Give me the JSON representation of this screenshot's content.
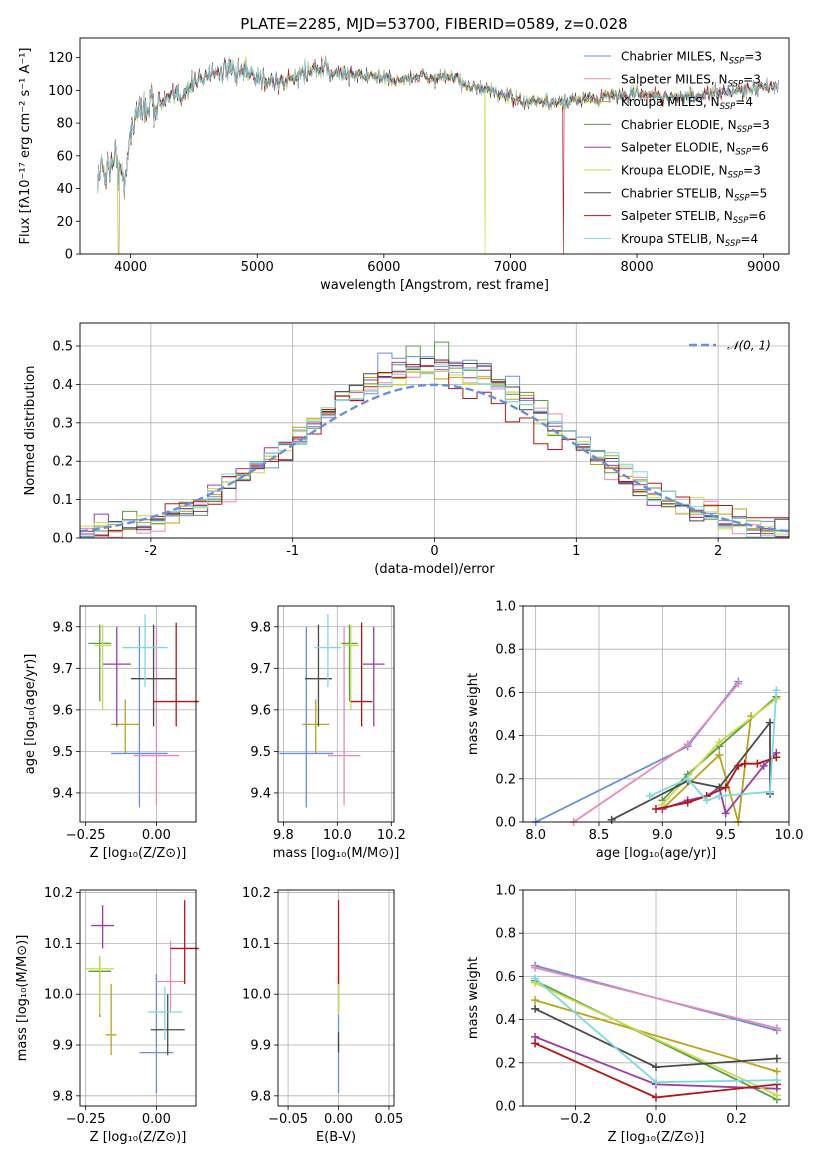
{
  "figure": {
    "title": "PLATE=2285, MJD=53700, FIBERID=0589, z=0.028"
  },
  "chart_data": [
    {
      "id": "spectrum",
      "type": "line",
      "xlabel": "wavelength [Angstrom, rest frame]",
      "ylabel": "Flux [fλ10⁻¹⁷ erg cm⁻² s⁻¹ A⁻¹]",
      "xlim": [
        3600,
        9200
      ],
      "ylim": [
        0,
        132
      ],
      "xticks": [
        4000,
        5000,
        6000,
        7000,
        8000,
        9000
      ],
      "yticks": [
        0,
        20,
        40,
        60,
        80,
        100,
        120
      ],
      "legend_position": "top-right",
      "grid": false,
      "data_range_x": [
        3740,
        9120
      ],
      "continuum": {
        "x": [
          3740,
          3800,
          3850,
          3900,
          3950,
          4000,
          4050,
          4100,
          4200,
          4300,
          4400,
          4500,
          4600,
          4700,
          4800,
          4900,
          5000,
          5100,
          5200,
          5300,
          5400,
          5500,
          5600,
          5700,
          5800,
          5900,
          6000,
          6100,
          6200,
          6300,
          6400,
          6500,
          6600,
          6700,
          6800,
          6900,
          7000,
          7100,
          7200,
          7300,
          7400,
          7500,
          7600,
          7700,
          7800,
          7900,
          8000,
          8200,
          8400,
          8600,
          8800,
          9000,
          9120
        ],
        "y": [
          48,
          52,
          56,
          58,
          40,
          78,
          86,
          90,
          92,
          94,
          98,
          104,
          110,
          112,
          111,
          110,
          108,
          106,
          104,
          108,
          112,
          112,
          111,
          110,
          110,
          108,
          108,
          106,
          107,
          109,
          107,
          108,
          106,
          102,
          100,
          98,
          96,
          92,
          94,
          92,
          92,
          94,
          96,
          95,
          98,
          96,
          98,
          96,
          96,
          98,
          100,
          102,
          102
        ]
      },
      "series": [
        {
          "name": "Chabrier MILES, N",
          "sub": "SSP",
          "value": "=3",
          "color": "#6a8fd8"
        },
        {
          "name": "Salpeter MILES, N",
          "sub": "SSP",
          "value": "=3",
          "color": "#e88ab8"
        },
        {
          "name": "Kroupa MILES, N",
          "sub": "SSP",
          "value": "=4",
          "color": "#b8a418"
        },
        {
          "name": "Chabrier ELODIE, N",
          "sub": "SSP",
          "value": "=3",
          "color": "#5a9b48"
        },
        {
          "name": "Salpeter ELODIE, N",
          "sub": "SSP",
          "value": "=6",
          "color": "#9b3aa8"
        },
        {
          "name": "Kroupa ELODIE, N",
          "sub": "SSP",
          "value": "=3",
          "color": "#c8dc48"
        },
        {
          "name": "Chabrier STELIB, N",
          "sub": "SSP",
          "value": "=5",
          "color": "#4a4a4a"
        },
        {
          "name": "Salpeter STELIB, N",
          "sub": "SSP",
          "value": "=6",
          "color": "#b01818"
        },
        {
          "name": "Kroupa STELIB, N",
          "sub": "SSP",
          "value": "=4",
          "color": "#7ed8e0"
        }
      ],
      "dips": [
        {
          "series": 2,
          "x": 3905,
          "y": 0
        },
        {
          "series": 5,
          "x": 6800,
          "y": 0
        },
        {
          "series": 7,
          "x": 7420,
          "y": 0
        }
      ]
    },
    {
      "id": "residuals",
      "type": "histogram",
      "xlabel": "(data-model)/error",
      "ylabel": "Normed distribution",
      "xlim": [
        -2.5,
        2.5
      ],
      "ylim": [
        0,
        0.56
      ],
      "xticks": [
        -2,
        -1,
        0,
        1,
        2
      ],
      "yticks": [
        0.0,
        0.1,
        0.2,
        0.3,
        0.4,
        0.5
      ],
      "grid": true,
      "bin_width": 0.1,
      "reference": {
        "name": "𝒩(0, 1)",
        "style": "dashed",
        "color": "#6a8fd8"
      }
    },
    {
      "id": "age-vs-z",
      "type": "errorbar",
      "xlabel": "Z [log₁₀(Z/Z⊙)]",
      "ylabel": "age  [log₁₀(age/yr)]",
      "xlim": [
        -0.27,
        0.14
      ],
      "ylim": [
        9.33,
        9.85
      ],
      "xticks": [
        -0.25,
        0.0
      ],
      "xtick_labels": [
        "−0.25",
        "0.00"
      ],
      "yticks": [
        9.4,
        9.5,
        9.6,
        9.7,
        9.8
      ],
      "grid": true,
      "points": [
        {
          "series": 0,
          "x": -0.06,
          "y": 9.495,
          "xerr": 0.1,
          "yerr": [
            0.13,
            0.305
          ]
        },
        {
          "series": 1,
          "x": 0.0,
          "y": 9.49,
          "xerr": 0.08,
          "yerr": [
            0.12,
            0.31
          ]
        },
        {
          "series": 2,
          "x": -0.11,
          "y": 9.565,
          "xerr": 0.05,
          "yerr": [
            0.07,
            0.06
          ]
        },
        {
          "series": 3,
          "x": -0.2,
          "y": 9.76,
          "xerr": 0.04,
          "yerr": [
            0.14,
            0.045
          ]
        },
        {
          "series": 4,
          "x": -0.14,
          "y": 9.71,
          "xerr": 0.05,
          "yerr": [
            0.15,
            0.09
          ]
        },
        {
          "series": 5,
          "x": -0.19,
          "y": 9.755,
          "xerr": 0.03,
          "yerr": [
            0.155,
            0.05
          ]
        },
        {
          "series": 6,
          "x": -0.01,
          "y": 9.675,
          "xerr": 0.08,
          "yerr": [
            0.115,
            0.13
          ]
        },
        {
          "series": 7,
          "x": 0.07,
          "y": 9.62,
          "xerr": 0.08,
          "yerr": [
            0.06,
            0.19
          ]
        },
        {
          "series": 8,
          "x": -0.04,
          "y": 9.75,
          "xerr": 0.08,
          "yerr": [
            0.095,
            0.08
          ]
        }
      ]
    },
    {
      "id": "age-vs-mass",
      "type": "errorbar",
      "xlabel": "mass [log₁₀(M/M⊙)]",
      "ylabel": "",
      "xlim": [
        9.78,
        10.21
      ],
      "ylim": [
        9.33,
        9.85
      ],
      "xticks": [
        9.8,
        10.0,
        10.2
      ],
      "xtick_labels": [
        "9.8",
        "10.0",
        "10.2"
      ],
      "yticks": [
        9.4,
        9.5,
        9.6,
        9.7,
        9.8
      ],
      "grid": true,
      "points": [
        {
          "series": 0,
          "x": 9.885,
          "y": 9.495,
          "xerr": 0.1,
          "yerr": [
            0.13,
            0.305
          ]
        },
        {
          "series": 1,
          "x": 10.025,
          "y": 9.49,
          "xerr": 0.06,
          "yerr": [
            0.12,
            0.31
          ]
        },
        {
          "series": 2,
          "x": 9.92,
          "y": 9.565,
          "xerr": 0.05,
          "yerr": [
            0.07,
            0.06
          ]
        },
        {
          "series": 3,
          "x": 10.045,
          "y": 9.76,
          "xerr": 0.03,
          "yerr": [
            0.14,
            0.045
          ]
        },
        {
          "series": 4,
          "x": 10.135,
          "y": 9.71,
          "xerr": 0.04,
          "yerr": [
            0.15,
            0.09
          ]
        },
        {
          "series": 5,
          "x": 10.05,
          "y": 9.755,
          "xerr": 0.03,
          "yerr": [
            0.155,
            0.05
          ]
        },
        {
          "series": 6,
          "x": 9.93,
          "y": 9.675,
          "xerr": 0.05,
          "yerr": [
            0.115,
            0.13
          ]
        },
        {
          "series": 7,
          "x": 10.09,
          "y": 9.62,
          "xerr": 0.04,
          "yerr": [
            0.06,
            0.19
          ]
        },
        {
          "series": 8,
          "x": 9.965,
          "y": 9.75,
          "xerr": 0.05,
          "yerr": [
            0.095,
            0.08
          ]
        }
      ]
    },
    {
      "id": "weight-vs-age",
      "type": "line",
      "xlabel": "age  [log₁₀(age/yr)]",
      "ylabel": "mass weight",
      "xlim": [
        7.9,
        10.0
      ],
      "ylim": [
        0,
        1.0
      ],
      "xticks": [
        8.0,
        8.5,
        9.0,
        9.5,
        10.0
      ],
      "xtick_labels": [
        "8.0",
        "8.5",
        "9.0",
        "9.5",
        "10.0"
      ],
      "yticks": [
        0.0,
        0.2,
        0.4,
        0.6,
        0.8,
        1.0
      ],
      "ytick_labels": [
        "0.0",
        "0.2",
        "0.4",
        "0.6",
        "0.8",
        "1.0"
      ],
      "grid": true,
      "lines": [
        {
          "series": 0,
          "x": [
            8.0,
            9.2,
            9.6
          ],
          "y": [
            0.0,
            0.35,
            0.65
          ]
        },
        {
          "series": 1,
          "x": [
            8.3,
            9.2,
            9.6
          ],
          "y": [
            0.0,
            0.36,
            0.64
          ]
        },
        {
          "series": 2,
          "x": [
            9.0,
            9.45,
            9.6,
            9.7
          ],
          "y": [
            0.06,
            0.31,
            0.0,
            0.49
          ]
        },
        {
          "series": 3,
          "x": [
            9.0,
            9.2,
            9.45,
            9.9
          ],
          "y": [
            0.1,
            0.22,
            0.35,
            0.58
          ]
        },
        {
          "series": 4,
          "x": [
            9.0,
            9.2,
            9.35,
            9.45,
            9.5,
            9.8,
            9.9
          ],
          "y": [
            0.06,
            0.1,
            0.12,
            0.16,
            0.04,
            0.26,
            0.32
          ]
        },
        {
          "series": 5,
          "x": [
            9.0,
            9.45,
            9.9
          ],
          "y": [
            0.08,
            0.37,
            0.57
          ]
        },
        {
          "series": 6,
          "x": [
            8.6,
            9.2,
            9.45,
            9.85,
            9.85
          ],
          "y": [
            0.01,
            0.19,
            0.16,
            0.46,
            0.13
          ]
        },
        {
          "series": 7,
          "x": [
            8.95,
            9.2,
            9.35,
            9.5,
            9.6,
            9.65,
            9.75,
            9.9
          ],
          "y": [
            0.06,
            0.09,
            0.12,
            0.16,
            0.26,
            0.27,
            0.27,
            0.3
          ]
        },
        {
          "series": 8,
          "x": [
            8.9,
            9.2,
            9.35,
            9.45,
            9.85,
            9.9
          ],
          "y": [
            0.12,
            0.2,
            0.1,
            0.12,
            0.14,
            0.61
          ]
        }
      ]
    },
    {
      "id": "mass-vs-z",
      "type": "errorbar",
      "xlabel": "Z [log₁₀(Z/Z⊙)]",
      "ylabel": "mass [log₁₀(M/M⊙)]",
      "xlim": [
        -0.27,
        0.14
      ],
      "ylim": [
        9.78,
        10.205
      ],
      "xticks": [
        -0.25,
        0.0
      ],
      "xtick_labels": [
        "−0.25",
        "0.00"
      ],
      "yticks": [
        9.8,
        9.9,
        10.0,
        10.1,
        10.2
      ],
      "ytick_labels": [
        "9.8",
        "9.9",
        "10.0",
        "10.1",
        "10.2"
      ],
      "grid": true,
      "points": [
        {
          "series": 0,
          "x": 0.0,
          "y": 9.885,
          "xerr": 0.06,
          "yerr": [
            0.08,
            0.155
          ]
        },
        {
          "series": 1,
          "x": 0.05,
          "y": 10.025,
          "xerr": 0.05,
          "yerr": [
            0.06,
            0.08
          ]
        },
        {
          "series": 2,
          "x": -0.16,
          "y": 9.92,
          "xerr": 0.02,
          "yerr": [
            0.04,
            0.1
          ]
        },
        {
          "series": 3,
          "x": -0.2,
          "y": 10.045,
          "xerr": 0.04,
          "yerr": [
            0.09,
            0.03
          ]
        },
        {
          "series": 4,
          "x": -0.19,
          "y": 10.135,
          "xerr": 0.04,
          "yerr": [
            0.045,
            0.04
          ]
        },
        {
          "series": 5,
          "x": -0.2,
          "y": 10.05,
          "xerr": 0.05,
          "yerr": [
            0.09,
            0.025
          ]
        },
        {
          "series": 6,
          "x": 0.04,
          "y": 9.93,
          "xerr": 0.06,
          "yerr": [
            0.05,
            0.07
          ]
        },
        {
          "series": 7,
          "x": 0.1,
          "y": 10.09,
          "xerr": 0.05,
          "yerr": [
            0.07,
            0.095
          ]
        },
        {
          "series": 8,
          "x": 0.03,
          "y": 9.965,
          "xerr": 0.06,
          "yerr": [
            0.055,
            0.05
          ]
        }
      ]
    },
    {
      "id": "mass-vs-ebv",
      "type": "errorbar",
      "xlabel": "E(B-V)",
      "ylabel": "",
      "xlim": [
        -0.06,
        0.055
      ],
      "ylim": [
        9.78,
        10.205
      ],
      "xticks": [
        -0.05,
        0.0,
        0.05
      ],
      "xtick_labels": [
        "−0.05",
        "0.00",
        "0.05"
      ],
      "yticks": [
        9.8,
        9.9,
        10.0,
        10.1,
        10.2
      ],
      "ytick_labels": [
        "9.8",
        "9.9",
        "10.0",
        "10.1",
        "10.2"
      ],
      "grid": true,
      "points": [
        {
          "series": 0,
          "x": 0.0,
          "y": 9.885,
          "xerr": 0,
          "yerr": [
            0.08,
            0.155
          ]
        },
        {
          "series": 1,
          "x": 0.0,
          "y": 10.025,
          "xerr": 0,
          "yerr": [
            0.06,
            0.08
          ]
        },
        {
          "series": 5,
          "x": 0.0,
          "y": 10.05,
          "xerr": 0,
          "yerr": [
            0.09,
            0.025
          ]
        },
        {
          "series": 6,
          "x": 0.0,
          "y": 9.905,
          "xerr": 0,
          "yerr": [
            0.02,
            0.02
          ]
        },
        {
          "series": 7,
          "x": 0.0,
          "y": 10.09,
          "xerr": 0,
          "yerr": [
            0.07,
            0.095
          ]
        }
      ]
    },
    {
      "id": "weight-vs-z",
      "type": "line",
      "xlabel": "Z [log₁₀(Z/Z⊙)]",
      "ylabel": "mass weight",
      "xlim": [
        -0.33,
        0.33
      ],
      "ylim": [
        0,
        1.0
      ],
      "xticks": [
        -0.2,
        0.0,
        0.2
      ],
      "xtick_labels": [
        "−0.2",
        "0.0",
        "0.2"
      ],
      "yticks": [
        0.0,
        0.2,
        0.4,
        0.6,
        0.8,
        1.0
      ],
      "ytick_labels": [
        "0.0",
        "0.2",
        "0.4",
        "0.6",
        "0.8",
        "1.0"
      ],
      "grid": true,
      "lines": [
        {
          "series": 0,
          "x": [
            -0.3,
            0.3
          ],
          "y": [
            0.65,
            0.35
          ]
        },
        {
          "series": 1,
          "x": [
            -0.3,
            0.3
          ],
          "y": [
            0.64,
            0.36
          ]
        },
        {
          "series": 2,
          "x": [
            -0.3,
            0.3
          ],
          "y": [
            0.49,
            0.16
          ]
        },
        {
          "series": 3,
          "x": [
            -0.3,
            0.3
          ],
          "y": [
            0.58,
            0.03
          ]
        },
        {
          "series": 4,
          "x": [
            -0.3,
            0.0,
            0.3
          ],
          "y": [
            0.32,
            0.1,
            0.08
          ]
        },
        {
          "series": 5,
          "x": [
            -0.3,
            0.3
          ],
          "y": [
            0.57,
            0.05
          ]
        },
        {
          "series": 6,
          "x": [
            -0.3,
            0.0,
            0.3
          ],
          "y": [
            0.45,
            0.18,
            0.22
          ]
        },
        {
          "series": 7,
          "x": [
            -0.3,
            0.0,
            0.3
          ],
          "y": [
            0.29,
            0.04,
            0.1
          ]
        },
        {
          "series": 8,
          "x": [
            -0.3,
            0.0,
            0.3
          ],
          "y": [
            0.59,
            0.11,
            0.12
          ]
        }
      ]
    }
  ]
}
